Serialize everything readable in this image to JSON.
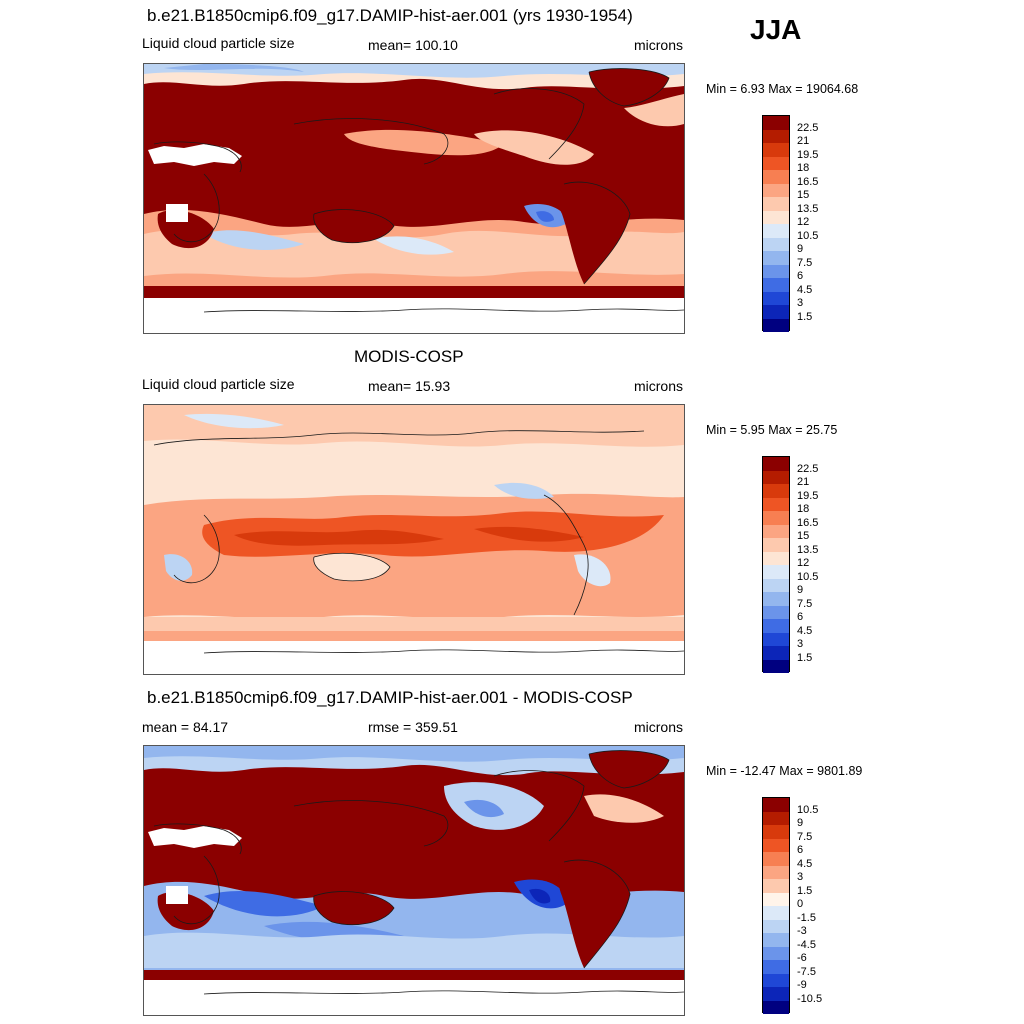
{
  "season": "JJA",
  "panels": [
    {
      "title": "b.e21.B1850cmip6.f09_g17.DAMIP-hist-aer.001 (yrs 1930-1954)",
      "left_label": "Liquid cloud particle size",
      "center_label": "mean= 100.10",
      "right_label": "microns",
      "minmax": "Min =   6.93 Max = 19064.68",
      "colorbar": {
        "labels": [
          "22.5",
          "21",
          "19.5",
          "18",
          "16.5",
          "15",
          "13.5",
          "12",
          "10.5",
          "9",
          "7.5",
          "6",
          "4.5",
          "3",
          "1.5"
        ],
        "colors": [
          "#8b0000",
          "#b41c00",
          "#d83a0c",
          "#ee5524",
          "#f77f52",
          "#fba582",
          "#fdc9ae",
          "#fde5d4",
          "#dce9f8",
          "#bcd4f3",
          "#93b6ee",
          "#6b94ea",
          "#3f6ce4",
          "#1f47d6",
          "#0c25b8",
          "#000080"
        ]
      }
    },
    {
      "title": "MODIS-COSP",
      "left_label": "Liquid cloud particle size",
      "center_label": "mean=  15.93",
      "right_label": "microns",
      "minmax": "Min =   5.95 Max =  25.75",
      "colorbar": {
        "labels": [
          "22.5",
          "21",
          "19.5",
          "18",
          "16.5",
          "15",
          "13.5",
          "12",
          "10.5",
          "9",
          "7.5",
          "6",
          "4.5",
          "3",
          "1.5"
        ],
        "colors": [
          "#8b0000",
          "#b41c00",
          "#d83a0c",
          "#ee5524",
          "#f77f52",
          "#fba582",
          "#fdc9ae",
          "#fde5d4",
          "#dce9f8",
          "#bcd4f3",
          "#93b6ee",
          "#6b94ea",
          "#3f6ce4",
          "#1f47d6",
          "#0c25b8",
          "#000080"
        ]
      }
    },
    {
      "title": "b.e21.B1850cmip6.f09_g17.DAMIP-hist-aer.001 - MODIS-COSP",
      "left_label": "mean =  84.17",
      "center_label": "rmse = 359.51",
      "right_label": "microns",
      "minmax": "Min = -12.47 Max = 9801.89",
      "colorbar": {
        "labels": [
          "10.5",
          "9",
          "7.5",
          "6",
          "4.5",
          "3",
          "1.5",
          "0",
          "-1.5",
          "-3",
          "-4.5",
          "-6",
          "-7.5",
          "-9",
          "-10.5"
        ],
        "colors": [
          "#8b0000",
          "#b41c00",
          "#d83a0c",
          "#ee5524",
          "#f77f52",
          "#fba582",
          "#fdc9ae",
          "#fff4ea",
          "#dce9f8",
          "#bcd4f3",
          "#93b6ee",
          "#6b94ea",
          "#3f6ce4",
          "#1f47d6",
          "#0c25b8",
          "#000080"
        ]
      }
    }
  ]
}
